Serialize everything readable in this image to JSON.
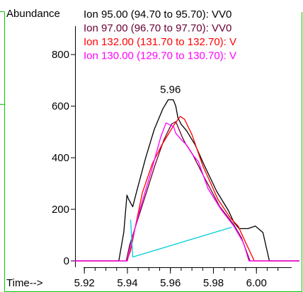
{
  "chart_data": {
    "type": "line",
    "ylabel": "Abundance",
    "xlabel": "Time-->",
    "xlim": [
      5.915,
      6.02
    ],
    "ylim": [
      0,
      880
    ],
    "x_ticks": [
      "5.92",
      "5.94",
      "5.96",
      "5.98",
      "6.00"
    ],
    "x_tick_values": [
      5.92,
      5.94,
      5.96,
      5.98,
      6.0
    ],
    "y_ticks": [
      "0",
      "200",
      "400",
      "600",
      "800"
    ],
    "y_tick_values": [
      0,
      200,
      400,
      600,
      800
    ],
    "peak_annotation": {
      "text": "5.96",
      "x": 5.96,
      "y": 640
    },
    "legend": [
      {
        "label": "Ion  95.00 (94.70 to 95.70): VV0",
        "color": "#000000"
      },
      {
        "label": "Ion  97.00 (96.70 to 97.70): VV0",
        "color": "#660033"
      },
      {
        "label": "Ion 132.00 (131.70 to 132.70): V",
        "color": "#ff0000"
      },
      {
        "label": "Ion 130.00 (129.70 to 130.70): V",
        "color": "#ff00ff"
      }
    ],
    "series": [
      {
        "name": "Ion 95.00 (94.70 to 95.70): VV0",
        "color": "#000000",
        "x": [
          5.915,
          5.936,
          5.9383,
          5.9398,
          5.9405,
          5.9425,
          5.9445,
          5.9485,
          5.9525,
          5.9565,
          5.959,
          5.9613,
          5.9625,
          5.9635,
          5.965,
          5.9675,
          5.9715,
          5.9755,
          5.9815,
          5.987,
          5.9895,
          5.992,
          5.996,
          5.9995,
          6.003,
          6.006,
          6.02
        ],
        "y": [
          0,
          0,
          110,
          255,
          240,
          210,
          275,
          400,
          510,
          590,
          625,
          625,
          600,
          555,
          530,
          505,
          450,
          375,
          270,
          195,
          150,
          125,
          125,
          135,
          110,
          0,
          0
        ]
      },
      {
        "name": "Ion 97.00 (96.70 to 97.70): VV0",
        "color": "#660033",
        "x": [
          5.915,
          5.9395,
          5.941,
          5.945,
          5.949,
          5.953,
          5.957,
          5.9605,
          5.9625,
          5.9645,
          5.9655,
          5.967,
          5.9705,
          5.976,
          5.983,
          5.9895,
          5.993,
          5.997,
          6.02
        ],
        "y": [
          0,
          0,
          60,
          165,
          270,
          375,
          470,
          530,
          540,
          500,
          480,
          455,
          410,
          320,
          210,
          140,
          90,
          0,
          0
        ]
      },
      {
        "name": "Ion 132.00 (131.70 to 132.70): V",
        "color": "#ff0000",
        "x": [
          5.915,
          5.9398,
          5.9415,
          5.944,
          5.947,
          5.9515,
          5.956,
          5.9615,
          5.9645,
          5.9665,
          5.97,
          5.975,
          5.982,
          5.988,
          5.9915,
          5.9945,
          5.999,
          6.02
        ],
        "y": [
          0,
          0,
          40,
          145,
          265,
          375,
          450,
          525,
          560,
          550,
          490,
          370,
          240,
          165,
          135,
          80,
          0,
          0
        ]
      },
      {
        "name": "Ion 130.00 (129.70 to 130.70): V",
        "color": "#ff00ff",
        "x": [
          5.915,
          5.94,
          5.9415,
          5.946,
          5.951,
          5.9555,
          5.958,
          5.9615,
          5.9625,
          5.9645,
          5.9675,
          5.971,
          5.973,
          5.9775,
          5.9835,
          5.9895,
          5.994,
          5.9965,
          6.02
        ],
        "y": [
          0,
          0,
          60,
          205,
          345,
          480,
          535,
          520,
          495,
          475,
          450,
          405,
          385,
          280,
          200,
          135,
          70,
          0,
          0
        ]
      },
      {
        "name": "baseline",
        "color": "#00ccdd",
        "x": [
          5.9415,
          5.9425,
          5.9883,
          5.9885
        ],
        "y": [
          160,
          15,
          130,
          130
        ]
      }
    ]
  }
}
